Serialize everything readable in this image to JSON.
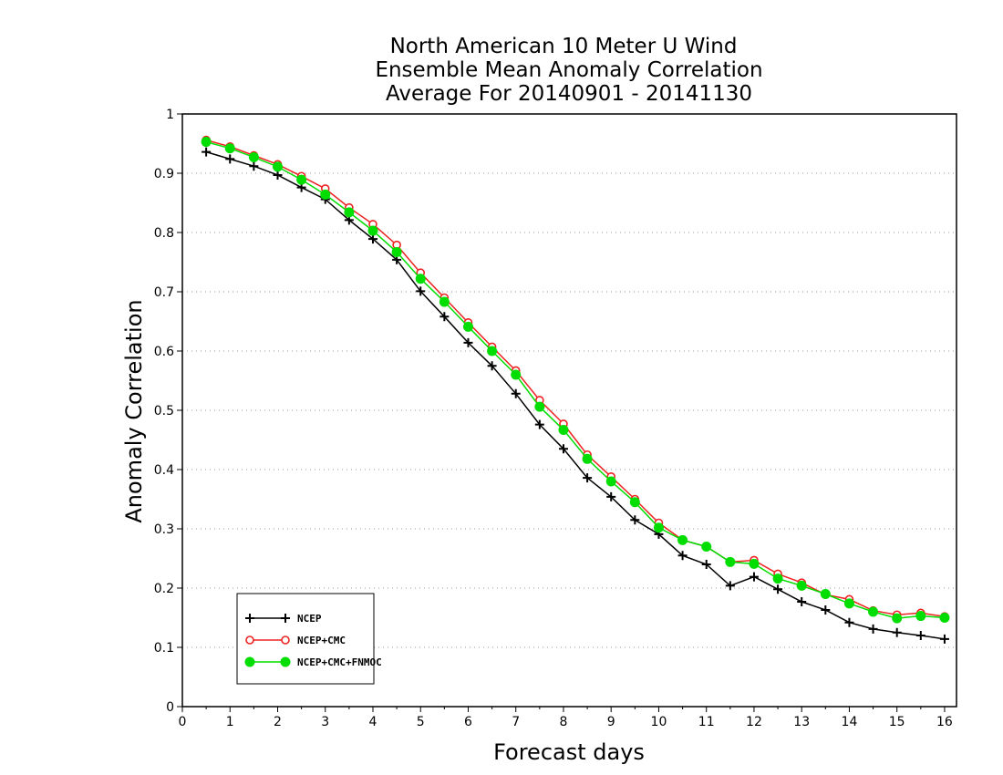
{
  "chart_data": {
    "type": "line",
    "title": [
      "North American 10 Meter U Wind",
      "Ensemble Mean Anomaly Correlation",
      "Average For 20140901 - 20141130"
    ],
    "xlabel": "Forecast days",
    "ylabel": "Anomaly Correlation",
    "xlim": [
      0,
      16.25
    ],
    "ylim": [
      0,
      1
    ],
    "xticks": [
      "0",
      "1",
      "2",
      "3",
      "4",
      "5",
      "6",
      "7",
      "8",
      "9",
      "10",
      "11",
      "12",
      "13",
      "14",
      "15",
      "16"
    ],
    "yticks": [
      "0",
      "0.1",
      "0.2",
      "0.3",
      "0.4",
      "0.5",
      "0.6",
      "0.7",
      "0.8",
      "0.9",
      "1"
    ],
    "grid": "horizontal dotted",
    "legend_position": "bottom-left",
    "x": [
      0.5,
      1,
      1.5,
      2,
      2.5,
      3,
      3.5,
      4,
      4.5,
      5,
      5.5,
      6,
      6.5,
      7,
      7.5,
      8,
      8.5,
      9,
      9.5,
      10,
      10.5,
      11,
      11.5,
      12,
      12.5,
      13,
      13.5,
      14,
      14.5,
      15,
      15.5,
      16
    ],
    "series": [
      {
        "name": "NCEP",
        "color": "#000000",
        "marker": "plus",
        "values": [
          0.936,
          0.924,
          0.912,
          0.897,
          0.876,
          0.856,
          0.821,
          0.789,
          0.754,
          0.701,
          0.658,
          0.614,
          0.575,
          0.528,
          0.476,
          0.435,
          0.386,
          0.354,
          0.315,
          0.291,
          0.255,
          0.24,
          0.204,
          0.219,
          0.198,
          0.177,
          0.163,
          0.142,
          0.131,
          0.125,
          0.12,
          0.114
        ]
      },
      {
        "name": "NCEP+CMC",
        "color": "#ee2222",
        "marker": "open-circle",
        "values": [
          0.956,
          0.945,
          0.93,
          0.915,
          0.895,
          0.874,
          0.842,
          0.814,
          0.779,
          0.732,
          0.69,
          0.648,
          0.607,
          0.567,
          0.517,
          0.477,
          0.425,
          0.388,
          0.35,
          0.31,
          0.281,
          0.27,
          0.244,
          0.247,
          0.224,
          0.209,
          0.189,
          0.181,
          0.162,
          0.155,
          0.158,
          0.152
        ]
      },
      {
        "name": "NCEP+CMC+FNMOC",
        "color": "#00dd00",
        "marker": "filled-circle",
        "values": [
          0.953,
          0.942,
          0.927,
          0.911,
          0.889,
          0.864,
          0.834,
          0.803,
          0.767,
          0.722,
          0.683,
          0.641,
          0.6,
          0.56,
          0.506,
          0.467,
          0.418,
          0.38,
          0.345,
          0.302,
          0.281,
          0.27,
          0.244,
          0.241,
          0.216,
          0.204,
          0.19,
          0.174,
          0.16,
          0.149,
          0.153,
          0.15
        ]
      }
    ]
  }
}
